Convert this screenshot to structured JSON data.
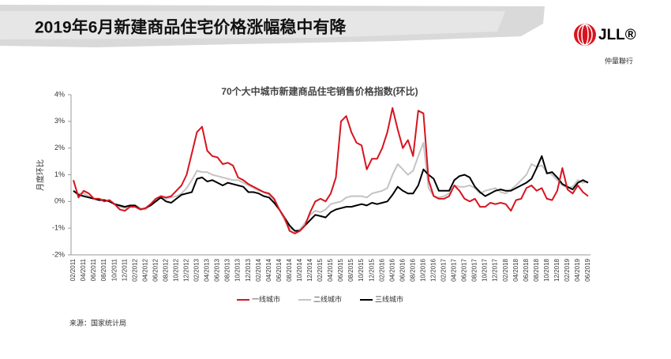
{
  "header": {
    "title": "2019年6月新建商品住宅价格涨幅稳中有降"
  },
  "logo": {
    "name": "JLL®",
    "sub": "仲量聯行"
  },
  "chart_data": {
    "type": "line",
    "title": "70个大中城市新建商品住宅销售价格指数(环比)",
    "y_label": "月度环比",
    "source": "来源：国家统计局",
    "categories": [
      "02/2011",
      null,
      "04/2011",
      null,
      "06/2011",
      null,
      "08/2011",
      null,
      "10/2011",
      null,
      "12/2011",
      null,
      "02/2012",
      null,
      "04/2012",
      null,
      "06/2012",
      null,
      "08/2012",
      null,
      "10/2012",
      null,
      "12/2012",
      null,
      "02/2013",
      null,
      "04/2013",
      null,
      "06/2013",
      null,
      "08/2013",
      null,
      "10/2013",
      null,
      "12/2013",
      null,
      "02/2014",
      null,
      "04/2014",
      null,
      "06/2014",
      null,
      "08/2014",
      null,
      "10/2014",
      null,
      "12/2014",
      null,
      "02/2015",
      null,
      "04/2015",
      null,
      "06/2015",
      null,
      "08/2015",
      null,
      "10/2015",
      null,
      "12/2015",
      null,
      "02/2016",
      null,
      "04/2016",
      null,
      "06/2016",
      null,
      "08/2016",
      null,
      "10/2016",
      null,
      "12/2016",
      null,
      "02/2017",
      null,
      "04/2017",
      null,
      "06/2017",
      null,
      "08/2017",
      null,
      "10/2017",
      null,
      "12/2017",
      null,
      "02/2018",
      null,
      "04/2018",
      null,
      "06/2018",
      null,
      "08/2018",
      null,
      "10/2018",
      null,
      "12/2018",
      null,
      "02/2019",
      null,
      "04/2019",
      null,
      "06/2019"
    ],
    "series": [
      {
        "name": "一线城市",
        "color": "#d7141e",
        "values": [
          0.8,
          0.15,
          0.4,
          0.3,
          0.1,
          0.1,
          0.0,
          0.05,
          -0.1,
          -0.3,
          -0.35,
          -0.2,
          -0.2,
          -0.3,
          -0.25,
          -0.1,
          0.1,
          0.2,
          0.15,
          0.2,
          0.4,
          0.6,
          1.0,
          1.8,
          2.6,
          2.8,
          1.9,
          1.7,
          1.65,
          1.4,
          1.45,
          1.35,
          0.9,
          0.8,
          0.65,
          0.55,
          0.45,
          0.35,
          0.3,
          0.1,
          -0.3,
          -0.6,
          -1.1,
          -1.2,
          -1.1,
          -0.9,
          -0.4,
          0.0,
          0.1,
          0.0,
          0.3,
          0.9,
          3.0,
          3.2,
          2.6,
          2.2,
          2.1,
          1.2,
          1.6,
          1.6,
          2.0,
          2.6,
          3.5,
          2.7,
          2.0,
          2.3,
          1.7,
          3.4,
          3.3,
          0.8,
          0.2,
          0.1,
          0.1,
          0.2,
          0.6,
          0.4,
          0.1,
          0.0,
          0.1,
          -0.2,
          -0.2,
          -0.05,
          -0.1,
          -0.05,
          -0.1,
          -0.35,
          0.05,
          0.1,
          0.5,
          0.6,
          0.4,
          0.5,
          0.1,
          0.05,
          0.4,
          1.25,
          0.45,
          0.3,
          0.6,
          0.35,
          0.2
        ]
      },
      {
        "name": "二线城市",
        "color": "#c4c4c4",
        "values": [
          0.4,
          0.3,
          0.3,
          0.2,
          0.1,
          0.1,
          0.05,
          0.0,
          -0.1,
          -0.2,
          -0.25,
          -0.2,
          -0.15,
          -0.25,
          -0.3,
          -0.1,
          0.05,
          0.2,
          0.1,
          0.15,
          0.2,
          0.3,
          0.5,
          0.8,
          1.15,
          1.1,
          1.1,
          1.0,
          0.95,
          0.9,
          0.85,
          0.8,
          0.8,
          0.7,
          0.6,
          0.5,
          0.4,
          0.35,
          0.25,
          0.05,
          -0.3,
          -0.7,
          -1.0,
          -1.1,
          -1.05,
          -0.8,
          -0.5,
          -0.35,
          -0.4,
          -0.3,
          -0.1,
          -0.05,
          0.0,
          0.15,
          0.2,
          0.2,
          0.2,
          0.15,
          0.3,
          0.35,
          0.4,
          0.5,
          1.0,
          1.4,
          1.2,
          1.0,
          1.15,
          1.7,
          2.2,
          0.5,
          0.2,
          0.15,
          0.2,
          0.3,
          0.6,
          0.55,
          0.55,
          0.6,
          0.5,
          0.3,
          0.4,
          0.45,
          0.5,
          0.35,
          0.3,
          0.45,
          0.6,
          0.8,
          1.0,
          1.4,
          1.3,
          1.35,
          1.1,
          1.0,
          0.8,
          0.6,
          0.5,
          0.55,
          0.8,
          0.7,
          0.75
        ]
      },
      {
        "name": "三线城市",
        "color": "#000000",
        "values": [
          0.4,
          0.25,
          0.2,
          0.15,
          0.1,
          0.05,
          0.05,
          0.0,
          -0.1,
          -0.15,
          -0.2,
          -0.15,
          -0.15,
          -0.3,
          -0.25,
          -0.15,
          0.0,
          0.15,
          0.0,
          -0.05,
          0.1,
          0.25,
          0.3,
          0.35,
          0.85,
          0.9,
          0.75,
          0.8,
          0.7,
          0.6,
          0.7,
          0.65,
          0.6,
          0.55,
          0.35,
          0.35,
          0.3,
          0.2,
          0.15,
          -0.05,
          -0.3,
          -0.6,
          -0.9,
          -1.1,
          -1.1,
          -0.9,
          -0.7,
          -0.5,
          -0.55,
          -0.6,
          -0.4,
          -0.3,
          -0.25,
          -0.2,
          -0.2,
          -0.15,
          -0.1,
          -0.15,
          -0.05,
          -0.1,
          -0.05,
          0.0,
          0.25,
          0.55,
          0.4,
          0.3,
          0.3,
          0.6,
          1.2,
          1.0,
          0.85,
          0.4,
          0.4,
          0.4,
          0.8,
          0.95,
          1.0,
          0.9,
          0.55,
          0.35,
          0.2,
          0.3,
          0.4,
          0.45,
          0.4,
          0.4,
          0.5,
          0.6,
          0.7,
          0.85,
          1.25,
          1.7,
          1.05,
          1.1,
          0.9,
          0.65,
          0.55,
          0.45,
          0.7,
          0.8,
          0.7
        ]
      }
    ],
    "ylim": [
      -2,
      4
    ],
    "yticks": [
      {
        "value": 4,
        "label": "4%"
      },
      {
        "value": 3,
        "label": "3%"
      },
      {
        "value": 2,
        "label": "2%"
      },
      {
        "value": 1,
        "label": "1%"
      },
      {
        "value": 0,
        "label": "0%"
      },
      {
        "value": -1,
        "label": "-1%"
      },
      {
        "value": -2,
        "label": "-2%"
      }
    ],
    "grid": false,
    "legend": "bottom"
  }
}
